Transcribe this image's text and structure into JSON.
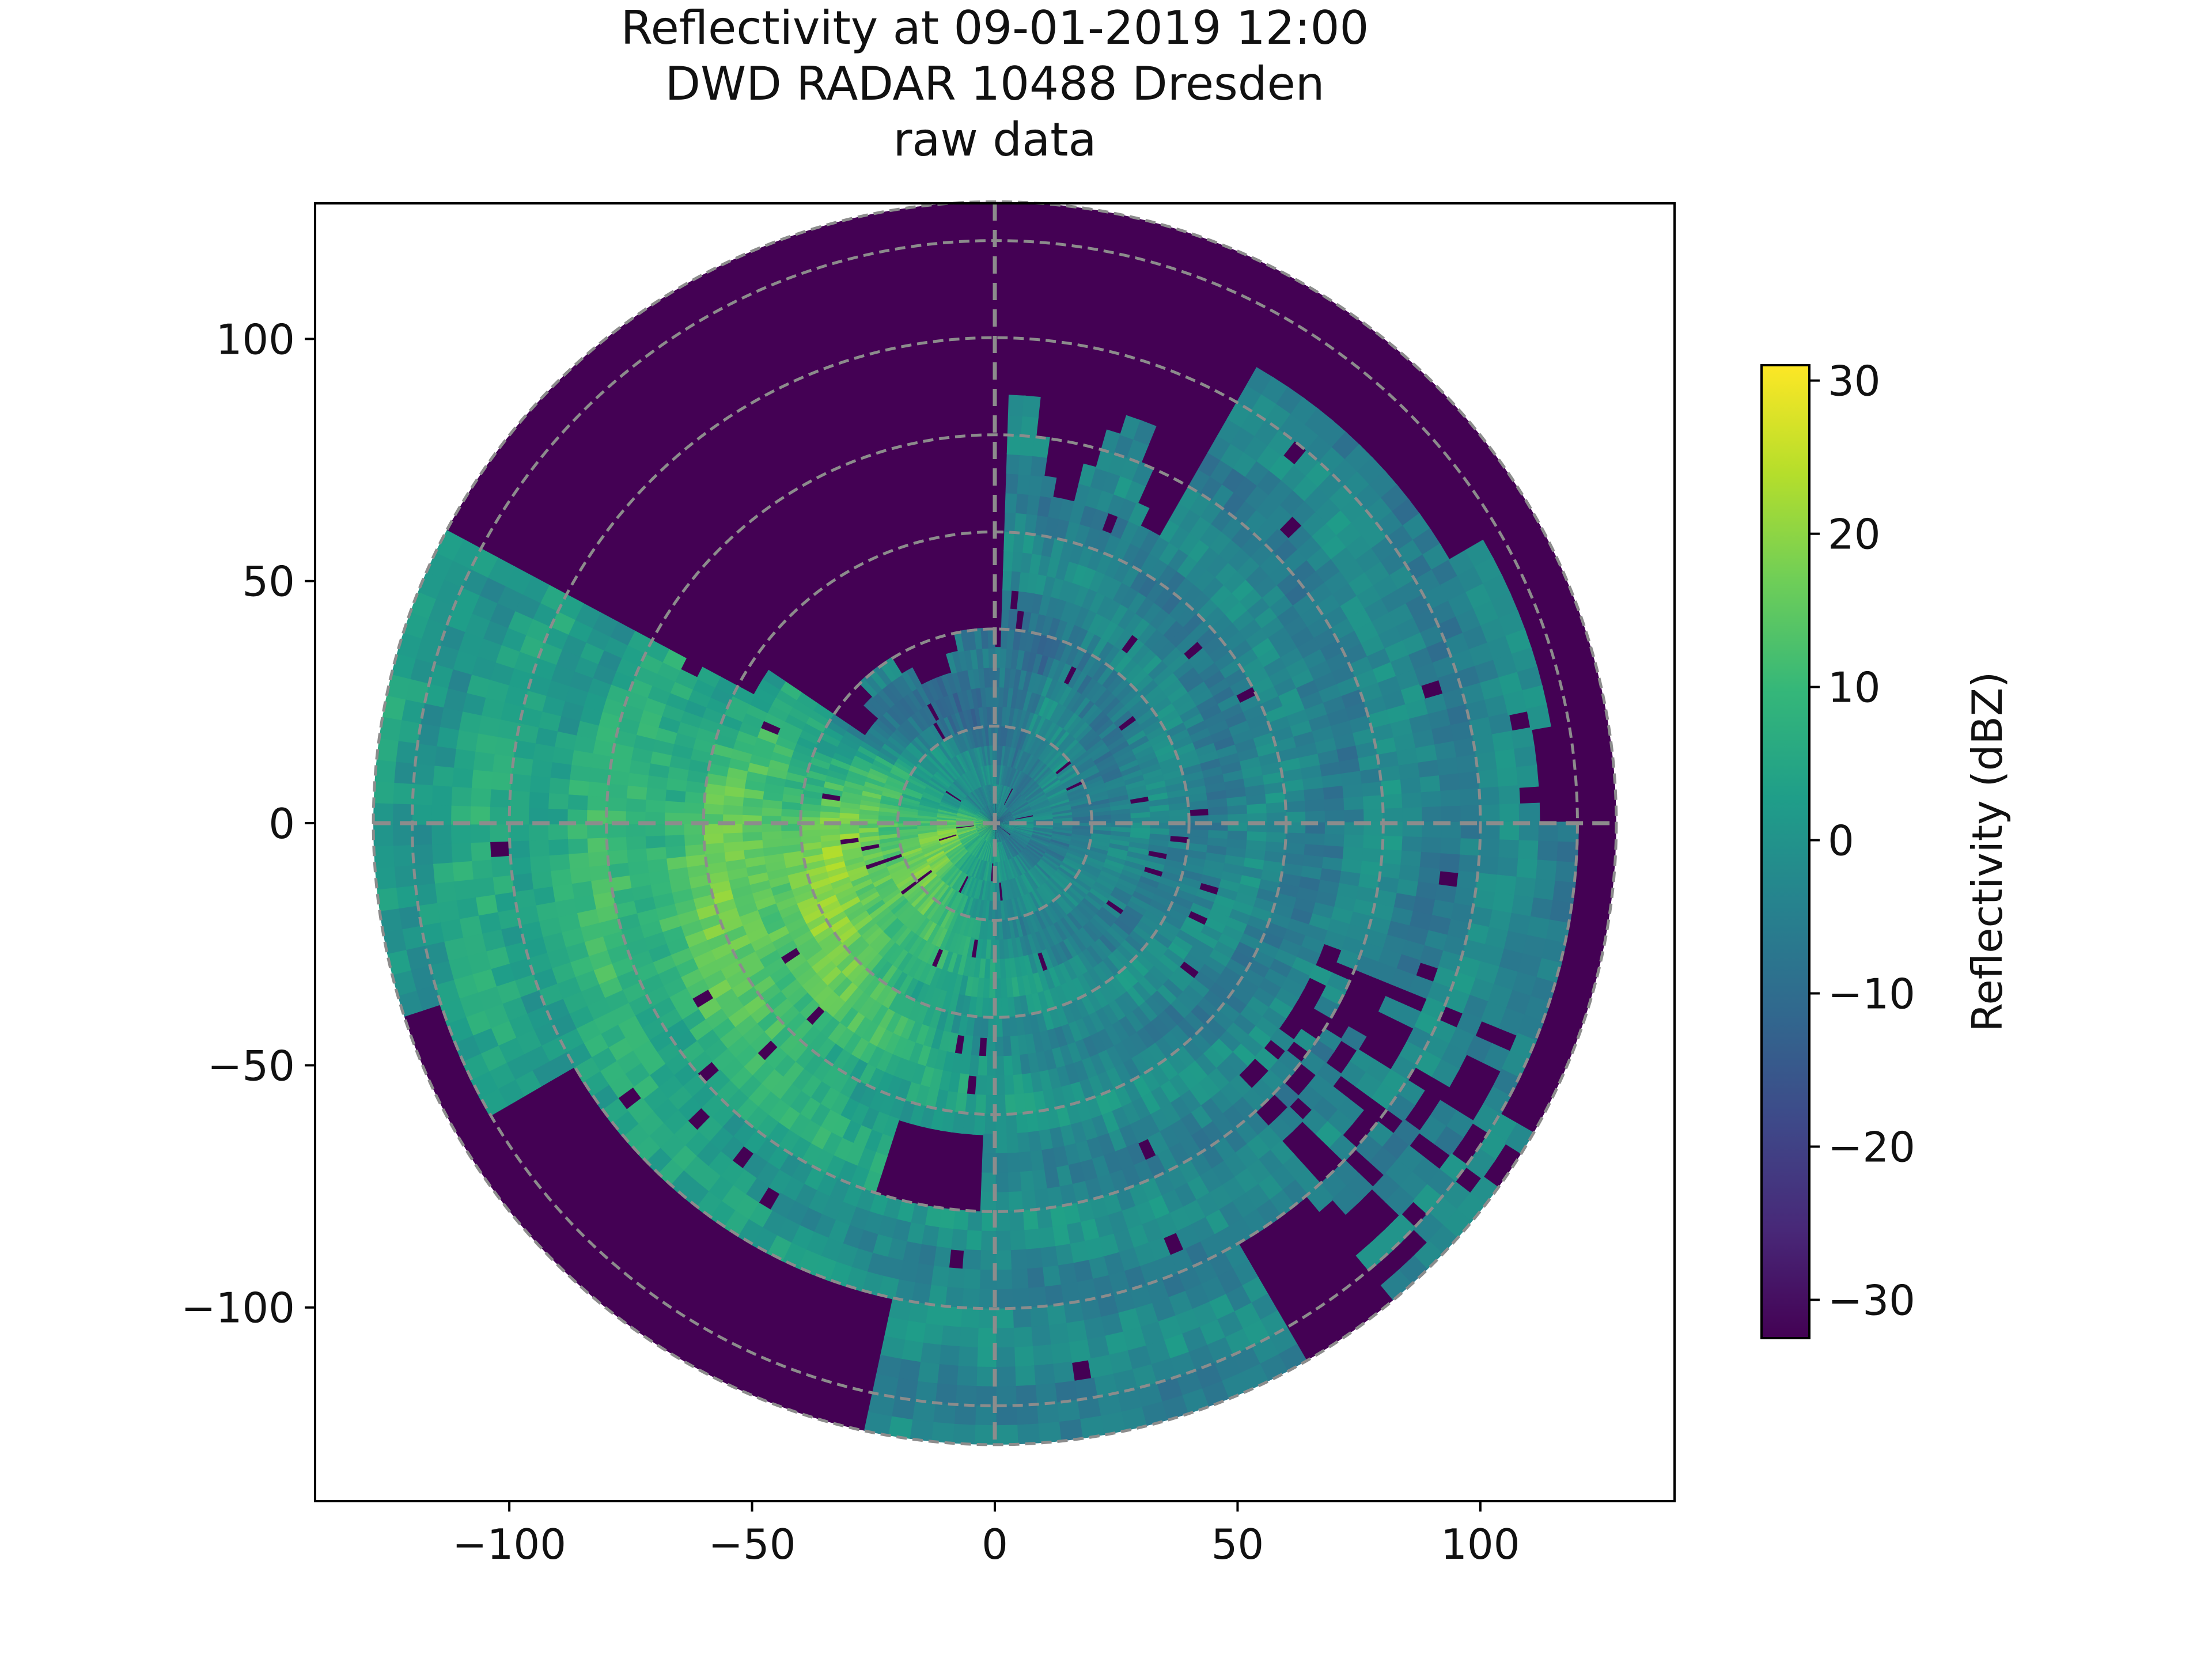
{
  "chart_data": {
    "type": "heatmap",
    "subtype": "polar-radar-ppi",
    "title_lines": [
      "Reflectivity at 09-01-2019 12:00",
      "DWD RADAR 10488 Dresden",
      "raw data"
    ],
    "xlim": [
      -140,
      140
    ],
    "ylim": [
      -140,
      128
    ],
    "x_ticks": [
      -100,
      -50,
      0,
      50,
      100
    ],
    "x_tick_labels": [
      "−100",
      "−50",
      "0",
      "50",
      "100"
    ],
    "y_ticks": [
      100,
      50,
      0,
      -50,
      -100
    ],
    "y_tick_labels": [
      "100",
      "50",
      "0",
      "−50",
      "−100"
    ],
    "range_max": 128,
    "range_rings": [
      20,
      40,
      60,
      80,
      100,
      120,
      128
    ],
    "grid_color": "#8c8c8c",
    "colormap": "viridis",
    "colorbar": {
      "label": "Reflectivity (dBZ)",
      "vmin": -32.5,
      "vmax": 31,
      "ticks": [
        30,
        20,
        10,
        0,
        -10,
        -20,
        -30
      ],
      "tick_labels": [
        "30",
        "20",
        "10",
        "0",
        "−10",
        "−20",
        "−30"
      ]
    },
    "colors": {
      "no_echo": "#440154",
      "low": "#21918c",
      "mid": "#5ec962",
      "high": "#c8e020",
      "max": "#fde725"
    }
  }
}
